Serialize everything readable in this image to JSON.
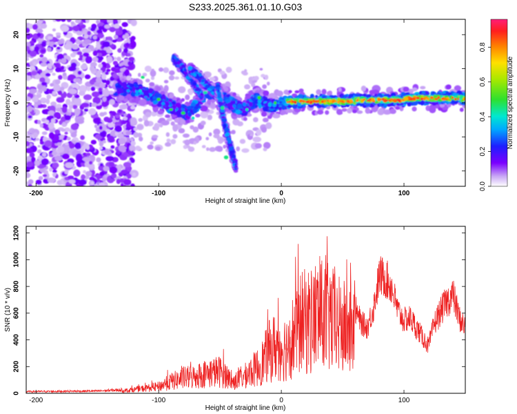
{
  "figure": {
    "title": "S233.2025.361.01.10.G03"
  },
  "chart_data": [
    {
      "type": "heatmap",
      "title": "S233.2025.361.01.10.G03",
      "xlabel": "Height of straight line (km)",
      "ylabel": "Frequency (Hz)",
      "xlim": [
        -208,
        150
      ],
      "ylim": [
        -24.5,
        24.5
      ],
      "xticks": [
        -200,
        -100,
        0,
        100
      ],
      "xtick_labels": [
        "-200",
        "-100",
        "0",
        "100"
      ],
      "yticks": [
        -20,
        -10,
        0,
        10,
        20
      ],
      "ytick_labels": [
        "-20",
        "-10",
        "0",
        "10",
        "20"
      ],
      "colorbar": {
        "label": "Normalized spectral amplitude",
        "range": [
          0,
          0.96
        ],
        "ticks": [
          0.0,
          0.2,
          0.4,
          0.6,
          0.8
        ],
        "tick_labels": [
          "0.0",
          "0.2",
          "0.4",
          "0.6",
          "0.8"
        ],
        "colormap": "rainbow"
      },
      "features": {
        "noise_region_x": [
          -208,
          -130
        ],
        "main_trace": [
          [
            -135,
            4
          ],
          [
            -120,
            4
          ],
          [
            -105,
            2
          ],
          [
            -95,
            0
          ],
          [
            -85,
            -2
          ],
          [
            -75,
            -3
          ],
          [
            -60,
            3
          ],
          [
            -45,
            1
          ],
          [
            -38,
            -1
          ],
          [
            -30,
            -2
          ],
          [
            -20,
            1
          ],
          [
            -10,
            -1
          ],
          [
            0,
            0
          ],
          [
            20,
            0.5
          ],
          [
            40,
            0.3
          ],
          [
            60,
            0.8
          ],
          [
            80,
            0.7
          ],
          [
            95,
            0.8
          ],
          [
            110,
            1.3
          ],
          [
            130,
            1.5
          ],
          [
            150,
            1.4
          ]
        ],
        "branch_traces": [
          [
            [
              -88,
              13
            ],
            [
              -80,
              10
            ],
            [
              -72,
              6
            ],
            [
              -65,
              2
            ]
          ],
          [
            [
              -75,
              10
            ],
            [
              -68,
              8
            ],
            [
              -60,
              5
            ],
            [
              -50,
              2
            ]
          ],
          [
            [
              -52,
              5
            ],
            [
              -47,
              -5
            ],
            [
              -42,
              -12
            ],
            [
              -37,
              -19
            ]
          ]
        ],
        "strong_segment_x": [
          5,
          150
        ],
        "strong_segment_freq": 1
      }
    },
    {
      "type": "line",
      "xlabel": "Height of straight line (km)",
      "ylabel": "SNR (10 * v/v)",
      "xlim": [
        -208,
        150
      ],
      "ylim": [
        0,
        1250
      ],
      "xticks": [
        -200,
        -100,
        0,
        100
      ],
      "xtick_labels": [
        "-200",
        "-100",
        "0",
        "100"
      ],
      "yticks": [
        0,
        200,
        400,
        600,
        800,
        1000,
        1200
      ],
      "ytick_labels": [
        "0",
        "200",
        "400",
        "600",
        "800",
        "1000",
        "1200"
      ],
      "series": [
        {
          "name": "SNR",
          "color": "#ee2222",
          "envelope_x": [
            -208,
            -150,
            -130,
            -120,
            -110,
            -100,
            -90,
            -80,
            -70,
            -60,
            -50,
            -45,
            -40,
            -30,
            -25,
            -20,
            -15,
            -10,
            -5,
            0,
            5,
            10,
            15,
            20,
            25,
            30,
            35,
            40,
            45,
            50,
            55,
            60,
            65,
            70,
            75,
            80,
            85,
            90,
            95,
            100,
            105,
            110,
            115,
            120,
            125,
            130,
            135,
            140,
            145,
            150
          ],
          "envelope_y": [
            15,
            20,
            30,
            45,
            60,
            80,
            140,
            180,
            200,
            240,
            260,
            220,
            130,
            200,
            260,
            300,
            380,
            500,
            560,
            540,
            560,
            700,
            820,
            860,
            880,
            940,
            900,
            880,
            820,
            780,
            760,
            720,
            600,
            560,
            720,
            1000,
            980,
            900,
            700,
            620,
            640,
            560,
            480,
            400,
            600,
            700,
            780,
            840,
            640,
            560
          ]
        }
      ]
    }
  ]
}
